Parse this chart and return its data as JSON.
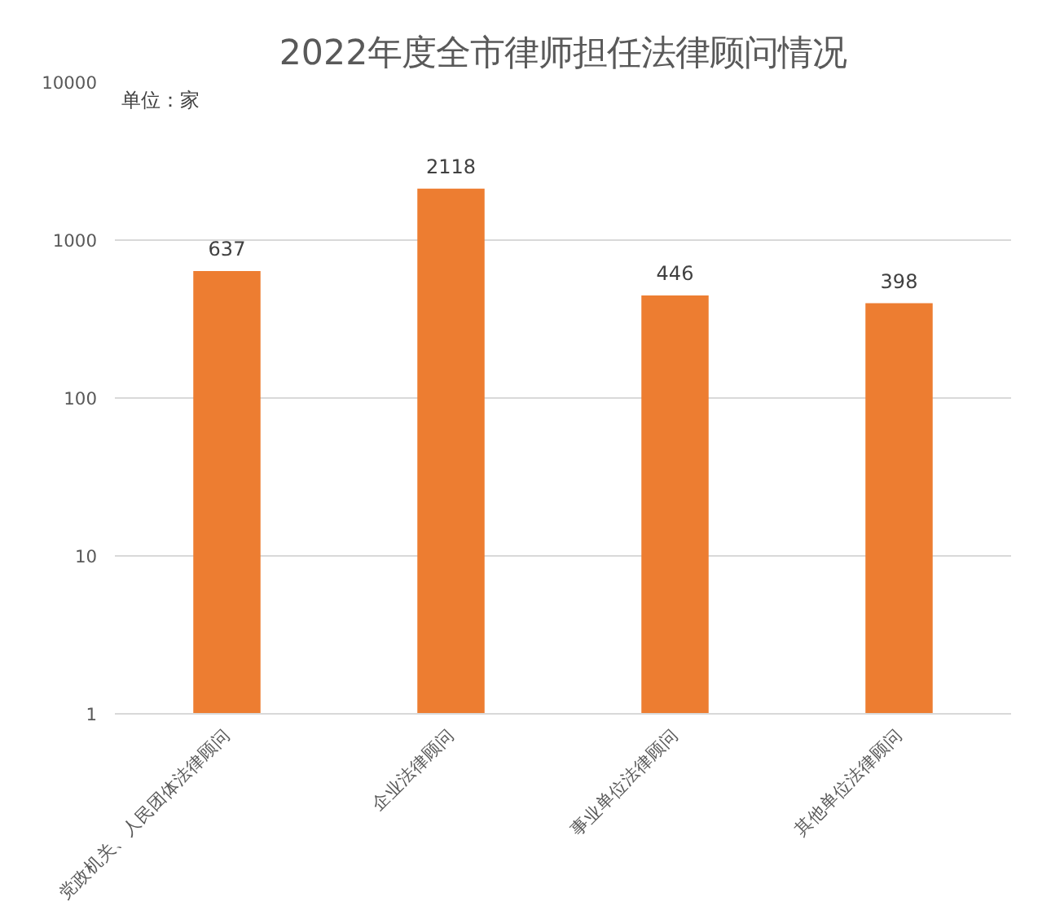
{
  "chart_data": {
    "type": "bar",
    "title": "2022年度全市律师担任法律顾问情况",
    "ylabel": "单位：家",
    "categories": [
      "党政机关、人民团体法律顾问",
      "企业法律顾问",
      "事业单位法律顾问",
      "其他单位法律顾问"
    ],
    "values": [
      637,
      2118,
      446,
      398
    ],
    "color": "#ed7d31",
    "log": "y",
    "ylim": [
      1,
      10000
    ],
    "yticks": [
      1,
      10,
      100,
      1000,
      10000
    ],
    "grid": "y",
    "data_labels": true
  }
}
